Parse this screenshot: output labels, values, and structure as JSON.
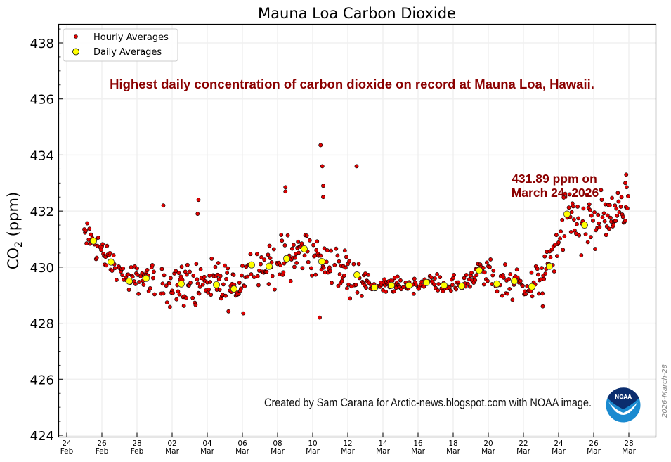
{
  "chart_data": {
    "type": "scatter",
    "title": "Mauna Loa Carbon Dioxide",
    "xlabel": "",
    "ylabel": "CO2 (ppm)",
    "ylabel_main": "CO",
    "ylabel_sub": "2",
    "ylabel_unit": " (ppm)",
    "ylim": [
      424,
      438.7
    ],
    "xlim_days": [
      -0.5,
      33.5
    ],
    "x_origin": "2026-02-24",
    "grid": true,
    "legend_position": "top-left",
    "yticks": [
      424,
      426,
      428,
      430,
      432,
      434,
      436,
      438
    ],
    "xticks": [
      {
        "day": 0,
        "label": "24",
        "month": "Feb"
      },
      {
        "day": 2,
        "label": "26",
        "month": "Feb"
      },
      {
        "day": 4,
        "label": "28",
        "month": "Feb"
      },
      {
        "day": 6,
        "label": "02",
        "month": "Mar"
      },
      {
        "day": 8,
        "label": "04",
        "month": "Mar"
      },
      {
        "day": 10,
        "label": "06",
        "month": "Mar"
      },
      {
        "day": 12,
        "label": "08",
        "month": "Mar"
      },
      {
        "day": 14,
        "label": "10",
        "month": "Mar"
      },
      {
        "day": 16,
        "label": "12",
        "month": "Mar"
      },
      {
        "day": 18,
        "label": "14",
        "month": "Mar"
      },
      {
        "day": 20,
        "label": "16",
        "month": "Mar"
      },
      {
        "day": 22,
        "label": "18",
        "month": "Mar"
      },
      {
        "day": 24,
        "label": "20",
        "month": "Mar"
      },
      {
        "day": 26,
        "label": "22",
        "month": "Mar"
      },
      {
        "day": 28,
        "label": "24",
        "month": "Mar"
      },
      {
        "day": 30,
        "label": "26",
        "month": "Mar"
      },
      {
        "day": 32,
        "label": "28",
        "month": "Mar"
      }
    ],
    "series": [
      {
        "name": "Hourly Averages",
        "color": "#e00000",
        "edge": "#000000",
        "marker": "small-circle",
        "note": "approximated hourly scatter around the daily means; notable outliers listed",
        "outliers": [
          {
            "day": 5.5,
            "value": 432.2
          },
          {
            "day": 7.5,
            "value": 432.4
          },
          {
            "day": 7.45,
            "value": 431.9
          },
          {
            "day": 12.45,
            "value": 432.85
          },
          {
            "day": 12.45,
            "value": 432.7
          },
          {
            "day": 14.45,
            "value": 434.35
          },
          {
            "day": 14.55,
            "value": 433.6
          },
          {
            "day": 14.6,
            "value": 432.9
          },
          {
            "day": 14.6,
            "value": 432.5
          },
          {
            "day": 16.5,
            "value": 433.6
          },
          {
            "day": 14.4,
            "value": 428.2
          },
          {
            "day": 10.05,
            "value": 428.35
          },
          {
            "day": 27.1,
            "value": 428.6
          },
          {
            "day": 31.85,
            "value": 433.3
          },
          {
            "day": 31.8,
            "value": 433.0
          }
        ]
      },
      {
        "name": "Daily Averages",
        "color": "#ffff00",
        "edge": "#000000",
        "marker": "circle",
        "points": [
          {
            "day": 1.52,
            "value": 430.93
          },
          {
            "day": 2.52,
            "value": 430.18
          },
          {
            "day": 3.56,
            "value": 429.5
          },
          {
            "day": 4.52,
            "value": 429.6
          },
          {
            "day": 6.52,
            "value": 429.4
          },
          {
            "day": 8.52,
            "value": 429.37
          },
          {
            "day": 9.52,
            "value": 429.22
          },
          {
            "day": 10.52,
            "value": 430.08
          },
          {
            "day": 11.52,
            "value": 430.03
          },
          {
            "day": 12.52,
            "value": 430.3
          },
          {
            "day": 13.52,
            "value": 430.65
          },
          {
            "day": 14.52,
            "value": 430.2
          },
          {
            "day": 16.52,
            "value": 429.72
          },
          {
            "day": 17.52,
            "value": 429.27
          },
          {
            "day": 18.48,
            "value": 429.35
          },
          {
            "day": 19.48,
            "value": 429.35
          },
          {
            "day": 20.48,
            "value": 429.45
          },
          {
            "day": 21.48,
            "value": 429.35
          },
          {
            "day": 22.48,
            "value": 429.32
          },
          {
            "day": 23.48,
            "value": 429.88
          },
          {
            "day": 24.48,
            "value": 429.4
          },
          {
            "day": 25.48,
            "value": 429.5
          },
          {
            "day": 26.48,
            "value": 429.3
          },
          {
            "day": 27.48,
            "value": 430.03
          },
          {
            "day": 28.48,
            "value": 431.89
          },
          {
            "day": 29.48,
            "value": 431.5
          }
        ]
      }
    ],
    "annotations": [
      {
        "text": "Highest daily concentration of carbon dioxide on record at Mauna Loa, Hawaii.",
        "role": "headline"
      },
      {
        "text": "431.89 ppm on",
        "role": "record-value"
      },
      {
        "text": "March 24, 2026",
        "role": "record-date"
      },
      {
        "text": "Created by Sam Carana for Arctic-news.blogspot.com with NOAA image.",
        "role": "credit"
      },
      {
        "text": "2026-March-28",
        "role": "datestamp"
      }
    ],
    "logo": {
      "name": "NOAA",
      "text": "NOAA",
      "dark": "#0b2d6e",
      "light": "#1a8ad0"
    }
  }
}
